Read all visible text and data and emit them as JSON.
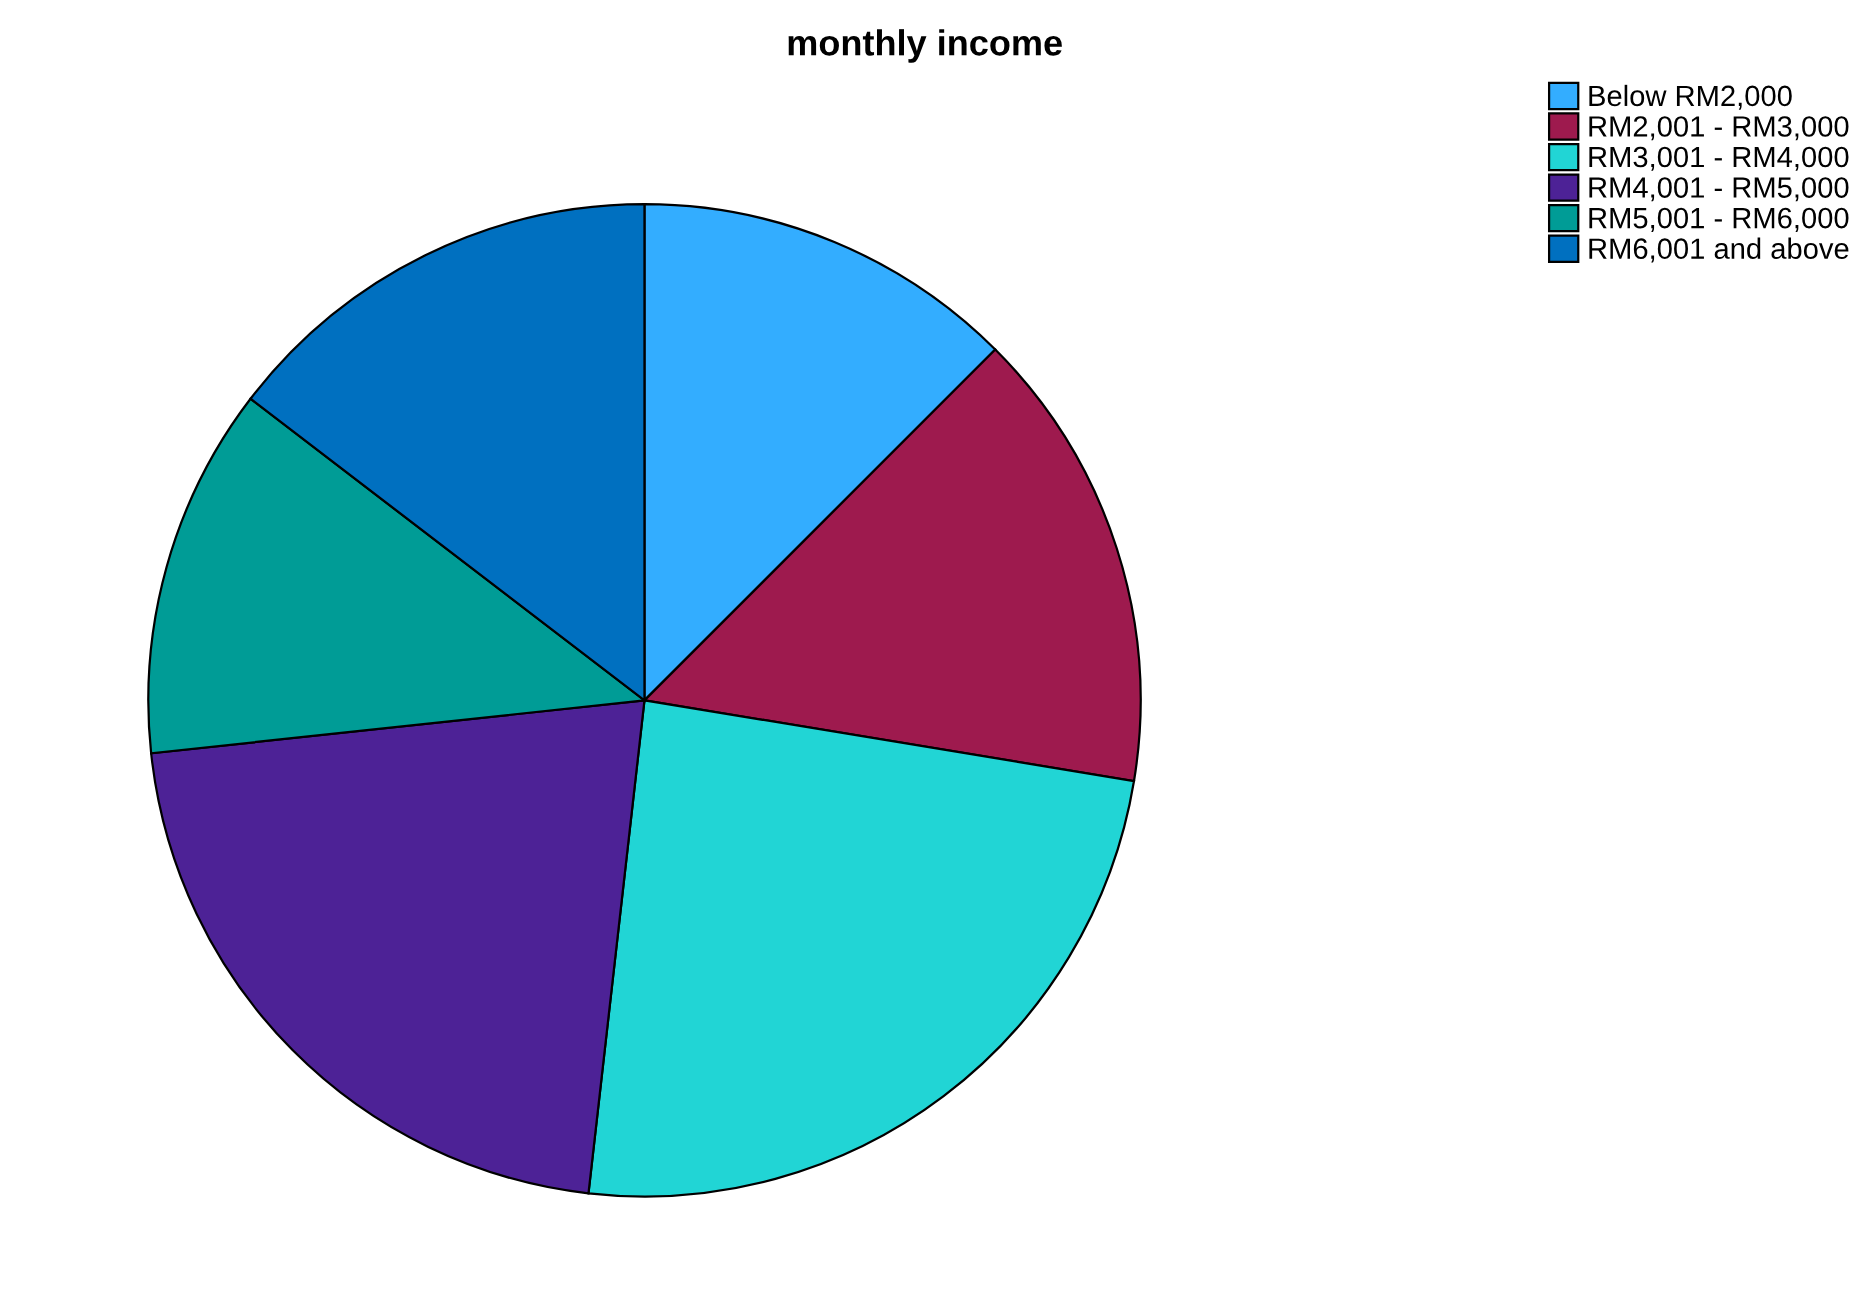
{
  "chart_data": {
    "type": "pie",
    "title": "monthly income",
    "categories": [
      "Below RM2,000",
      "RM2,001 - RM3,000",
      "RM3,001 - RM4,000",
      "RM4,001 - RM5,000",
      "RM5,001 - RM6,000",
      "RM6,001 and above"
    ],
    "values": [
      12.5,
      15.1,
      24.2,
      21.5,
      12.1,
      14.6
    ],
    "colors": [
      "#33adff",
      "#9e1a4e",
      "#21d5d5",
      "#4d2296",
      "#009c96",
      "#0070c0"
    ],
    "legend": "top right"
  }
}
